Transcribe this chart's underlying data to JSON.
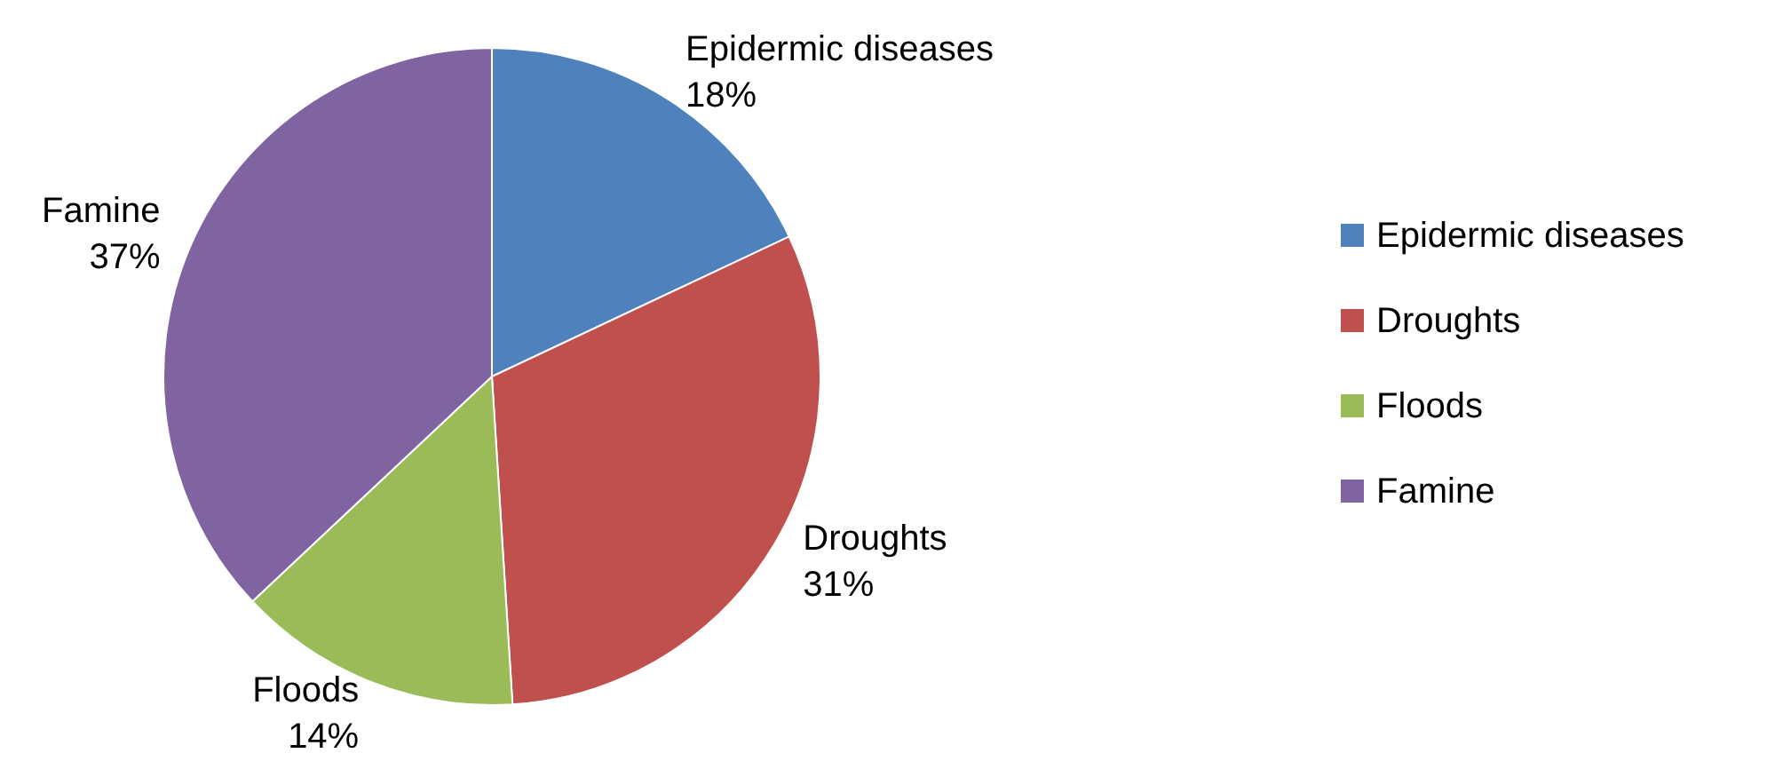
{
  "chart_data": {
    "type": "pie",
    "categories": [
      "Epidermic diseases",
      "Droughts",
      "Floods",
      "Famine"
    ],
    "values": [
      18,
      31,
      14,
      37
    ],
    "value_labels": [
      "18%",
      "31%",
      "14%",
      "37%"
    ],
    "colors": [
      "#4f81bd",
      "#c0504d",
      "#9bbb59",
      "#8064a2"
    ],
    "legend": "right"
  }
}
